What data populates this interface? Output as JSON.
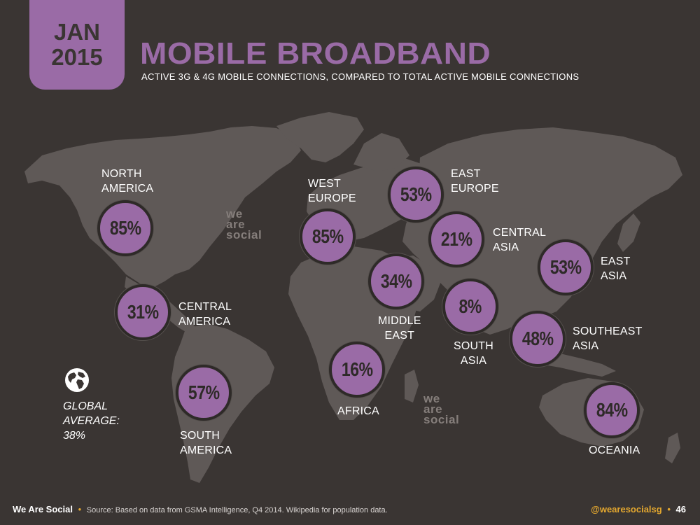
{
  "header": {
    "date_month": "JAN",
    "date_year": "2015",
    "title": "MOBILE BROADBAND",
    "subtitle": "ACTIVE 3G & 4G MOBILE CONNECTIONS, COMPARED TO TOTAL ACTIVE MOBILE CONNECTIONS"
  },
  "watermark": {
    "line1": "we",
    "line2": "are",
    "line3": "social"
  },
  "regions": {
    "north_america": {
      "line1": "NORTH",
      "line2": "AMERICA",
      "value": "85%"
    },
    "central_america": {
      "line1": "CENTRAL",
      "line2": "AMERICA",
      "value": "31%"
    },
    "south_america": {
      "line1": "SOUTH",
      "line2": "AMERICA",
      "value": "57%"
    },
    "west_europe": {
      "line1": "WEST",
      "line2": "EUROPE",
      "value": "85%"
    },
    "east_europe": {
      "line1": "EAST",
      "line2": "EUROPE",
      "value": "53%"
    },
    "central_asia": {
      "line1": "CENTRAL",
      "line2": "ASIA",
      "value": "21%"
    },
    "middle_east": {
      "line1": "MIDDLE",
      "line2": "EAST",
      "value": "34%"
    },
    "africa": {
      "line1": "AFRICA",
      "value": "16%"
    },
    "south_asia": {
      "line1": "SOUTH",
      "line2": "ASIA",
      "value": "8%"
    },
    "east_asia": {
      "line1": "EAST",
      "line2": "ASIA",
      "value": "53%"
    },
    "southeast_asia": {
      "line1": "SOUTHEAST",
      "line2": "ASIA",
      "value": "48%"
    },
    "oceania": {
      "line1": "OCEANIA",
      "value": "84%"
    }
  },
  "global_average": {
    "line1": "GLOBAL",
    "line2": "AVERAGE:",
    "line3": "38%"
  },
  "footer": {
    "brand": "We Are Social",
    "source": "Source: Based on data from GSMA Intelligence, Q4 2014. Wikipedia for population data.",
    "handle": "@wearesocialsg",
    "page": "46"
  },
  "colors": {
    "background": "#3a3533",
    "land": "#5f5957",
    "accent_purple": "#9a6ba6",
    "accent_orange": "#e3a72f"
  },
  "icons": {
    "globe": "globe-icon"
  }
}
